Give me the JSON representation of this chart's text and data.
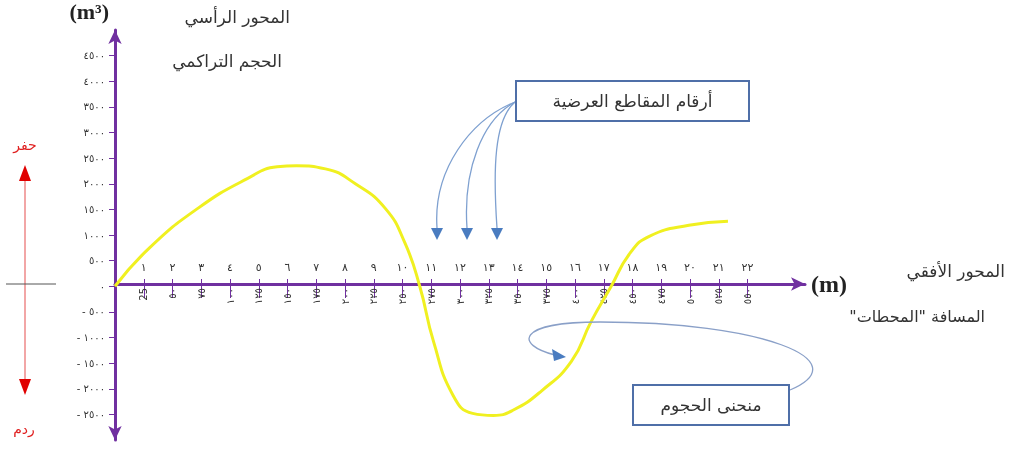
{
  "chart_data": {
    "type": "line",
    "xlabel": "(m)",
    "ylabel": "(m³)",
    "annotations": [
      "المحور الرأسي",
      "الحجم التراكمي",
      "حفر",
      "ردم",
      "أرقام المقاطع العرضية",
      "المحور الأفقي",
      "المسافة \"المحطات\"",
      "منحنى الحجوم"
    ],
    "x2lim": [
      0,
      24
    ],
    "x2ticks": [
      {
        "value": 1,
        "label": "١"
      },
      {
        "value": 2,
        "label": "٢"
      },
      {
        "value": 3,
        "label": "٣"
      },
      {
        "value": 4,
        "label": "٤"
      },
      {
        "value": 5,
        "label": "٥"
      },
      {
        "value": 6,
        "label": "٦"
      },
      {
        "value": 7,
        "label": "٧"
      },
      {
        "value": 8,
        "label": "٨"
      },
      {
        "value": 9,
        "label": "٩"
      },
      {
        "value": 10,
        "label": "١٠"
      },
      {
        "value": 11,
        "label": "١١"
      },
      {
        "value": 12,
        "label": "١٢"
      },
      {
        "value": 13,
        "label": "١٣"
      },
      {
        "value": 14,
        "label": "١٤"
      },
      {
        "value": 15,
        "label": "١٥"
      },
      {
        "value": 16,
        "label": "١٦"
      },
      {
        "value": 17,
        "label": "١٧"
      },
      {
        "value": 18,
        "label": "١٨"
      },
      {
        "value": 19,
        "label": "١٩"
      },
      {
        "value": 20,
        "label": "٢٠"
      },
      {
        "value": 21,
        "label": "٢١"
      },
      {
        "value": 22,
        "label": "٢٢"
      }
    ],
    "xlim": [
      0,
      600
    ],
    "ylim": [
      -3000,
      5000
    ],
    "xticks": [
      {
        "value": 25,
        "label": "25"
      },
      {
        "value": 50,
        "label": "٥٠"
      },
      {
        "value": 75,
        "label": "٧٥"
      },
      {
        "value": 100,
        "label": "١٠٠"
      },
      {
        "value": 125,
        "label": "١٢٥"
      },
      {
        "value": 150,
        "label": "١٥٠"
      },
      {
        "value": 175,
        "label": "١٧٥"
      },
      {
        "value": 200,
        "label": "٢٠٠"
      },
      {
        "value": 225,
        "label": "٢٢٥"
      },
      {
        "value": 250,
        "label": "٢٥٠"
      },
      {
        "value": 275,
        "label": "٢٧٥"
      },
      {
        "value": 300,
        "label": "٣٠٠"
      },
      {
        "value": 325,
        "label": "٣٢٥"
      },
      {
        "value": 350,
        "label": "٣٥٠"
      },
      {
        "value": 375,
        "label": "٣٧٥"
      },
      {
        "value": 400,
        "label": "٤٠٠"
      },
      {
        "value": 425,
        "label": "٤٢٥"
      },
      {
        "value": 450,
        "label": "٤٥٠"
      },
      {
        "value": 475,
        "label": "٤٧٥"
      },
      {
        "value": 500,
        "label": "٥٠٠"
      },
      {
        "value": 525,
        "label": "٥٢٥"
      },
      {
        "value": 550,
        "label": "٥٥٠"
      }
    ],
    "yticks": [
      {
        "value": -2500,
        "label": "- ٢٥٠٠"
      },
      {
        "value": -2000,
        "label": "- ٢٠٠٠"
      },
      {
        "value": -1500,
        "label": "- ١٥٠٠"
      },
      {
        "value": -1000,
        "label": "- ١٠٠٠"
      },
      {
        "value": -500,
        "label": "- ٥٠٠"
      },
      {
        "value": 0,
        "label": "٠"
      },
      {
        "value": 500,
        "label": "٥٠٠"
      },
      {
        "value": 1000,
        "label": "١٠٠٠"
      },
      {
        "value": 1500,
        "label": "١٥٠٠"
      },
      {
        "value": 2000,
        "label": "٢٠٠٠"
      },
      {
        "value": 2500,
        "label": "٢٥٠٠"
      },
      {
        "value": 3000,
        "label": "٣٠٠٠"
      },
      {
        "value": 3500,
        "label": "٣٥٠٠"
      },
      {
        "value": 4000,
        "label": "٤٠٠٠"
      },
      {
        "value": 4500,
        "label": "٤٥٠٠"
      }
    ],
    "series": [
      {
        "color": "#f0f020",
        "x": [
          0,
          30,
          72,
          115,
          141,
          158,
          183,
          209,
          235,
          252,
          265,
          277,
          294,
          311,
          329,
          346,
          371,
          397,
          414,
          431,
          448,
          465,
          499,
          533
        ],
        "values": [
          0,
          750,
          1520,
          2100,
          2330,
          2350,
          2290,
          2000,
          1520,
          850,
          0,
          -1080,
          -2130,
          -2480,
          -2520,
          -2420,
          -2040,
          -1460,
          -690,
          -20,
          650,
          980,
          1190,
          1270
        ]
      }
    ]
  }
}
